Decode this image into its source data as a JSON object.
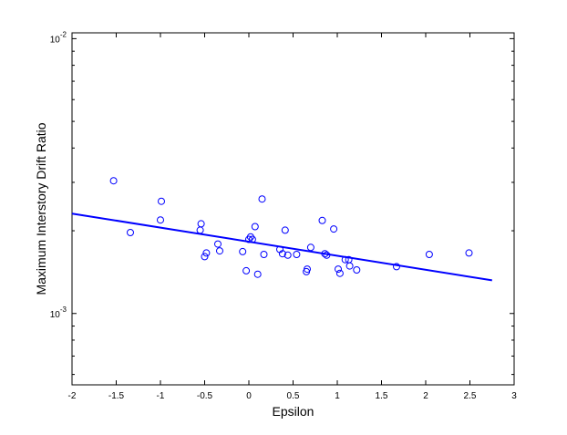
{
  "chart_data": {
    "type": "scatter",
    "xlabel": "Epsilon",
    "ylabel": "Maximum Interstory Drift Ratio",
    "xlim": [
      -2,
      3
    ],
    "ylim": [
      0.00055,
      0.0105
    ],
    "yscale": "log",
    "grid": false,
    "x_ticks": [
      {
        "value": -2,
        "label": "-2"
      },
      {
        "value": -1.5,
        "label": "-1.5"
      },
      {
        "value": -1,
        "label": "-1"
      },
      {
        "value": -0.5,
        "label": "-0.5"
      },
      {
        "value": 0,
        "label": "0"
      },
      {
        "value": 0.5,
        "label": "0.5"
      },
      {
        "value": 1,
        "label": "1"
      },
      {
        "value": 1.5,
        "label": "1.5"
      },
      {
        "value": 2,
        "label": "2"
      },
      {
        "value": 2.5,
        "label": "2.5"
      },
      {
        "value": 3,
        "label": "3"
      }
    ],
    "y_ticks": [
      {
        "value": 0.001,
        "base": "10",
        "exp": "-3"
      },
      {
        "value": 0.01,
        "base": "10",
        "exp": "-2"
      }
    ],
    "colors": {
      "marker": "#0000ff",
      "line": "#0000ff",
      "axis": "#000000"
    },
    "series": [
      {
        "kind": "scatter",
        "marker": "circle-open",
        "points": [
          {
            "x": -1.53,
            "y": 0.00304
          },
          {
            "x": -1.34,
            "y": 0.00197
          },
          {
            "x": -0.99,
            "y": 0.00256
          },
          {
            "x": -1.0,
            "y": 0.00219
          },
          {
            "x": -0.54,
            "y": 0.00212
          },
          {
            "x": -0.55,
            "y": 0.00201
          },
          {
            "x": -0.5,
            "y": 0.00161
          },
          {
            "x": -0.48,
            "y": 0.00166
          },
          {
            "x": -0.35,
            "y": 0.00179
          },
          {
            "x": -0.33,
            "y": 0.00169
          },
          {
            "x": -0.07,
            "y": 0.00168
          },
          {
            "x": -0.03,
            "y": 0.00143
          },
          {
            "x": 0.0,
            "y": 0.00186
          },
          {
            "x": 0.02,
            "y": 0.0019
          },
          {
            "x": 0.04,
            "y": 0.00186
          },
          {
            "x": 0.07,
            "y": 0.00207
          },
          {
            "x": 0.1,
            "y": 0.00139
          },
          {
            "x": 0.15,
            "y": 0.00261
          },
          {
            "x": 0.17,
            "y": 0.00164
          },
          {
            "x": 0.35,
            "y": 0.00171
          },
          {
            "x": 0.38,
            "y": 0.00165
          },
          {
            "x": 0.41,
            "y": 0.00201
          },
          {
            "x": 0.44,
            "y": 0.00163
          },
          {
            "x": 0.54,
            "y": 0.00164
          },
          {
            "x": 0.65,
            "y": 0.00142
          },
          {
            "x": 0.66,
            "y": 0.00145
          },
          {
            "x": 0.7,
            "y": 0.00174
          },
          {
            "x": 0.83,
            "y": 0.00218
          },
          {
            "x": 0.86,
            "y": 0.00165
          },
          {
            "x": 0.88,
            "y": 0.00163
          },
          {
            "x": 0.96,
            "y": 0.00203
          },
          {
            "x": 1.01,
            "y": 0.00145
          },
          {
            "x": 1.03,
            "y": 0.0014
          },
          {
            "x": 1.09,
            "y": 0.00157
          },
          {
            "x": 1.13,
            "y": 0.00157
          },
          {
            "x": 1.14,
            "y": 0.00149
          },
          {
            "x": 1.22,
            "y": 0.00144
          },
          {
            "x": 1.67,
            "y": 0.00148
          },
          {
            "x": 2.04,
            "y": 0.00164
          },
          {
            "x": 2.49,
            "y": 0.00166
          }
        ]
      },
      {
        "kind": "line",
        "points": [
          {
            "x": -2.0,
            "y": 0.00231
          },
          {
            "x": 2.75,
            "y": 0.00132
          }
        ]
      }
    ]
  }
}
